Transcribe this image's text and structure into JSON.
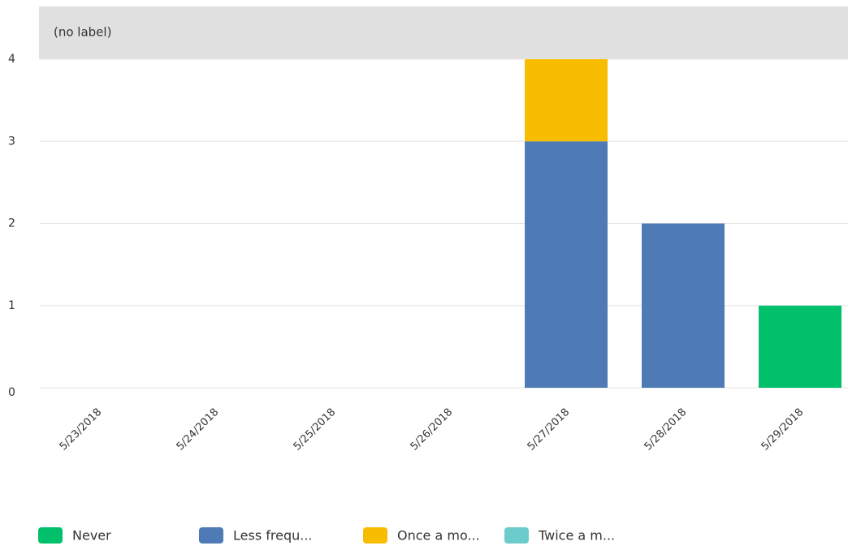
{
  "chart_data": {
    "type": "stacked_bar",
    "title": "(no label)",
    "categories": [
      "5/23/2018",
      "5/24/2018",
      "5/25/2018",
      "5/26/2018",
      "5/27/2018",
      "5/28/2018",
      "5/29/2018"
    ],
    "series": [
      {
        "name": "Never",
        "color": "#00c06b",
        "values": [
          0,
          0,
          0,
          0,
          0,
          0,
          1
        ]
      },
      {
        "name": "Less frequ...",
        "color": "#4e7ab5",
        "values": [
          0,
          0,
          0,
          0,
          3,
          2,
          0
        ]
      },
      {
        "name": "Once a mo...",
        "color": "#f8bd00",
        "values": [
          0,
          0,
          0,
          0,
          1,
          0,
          0
        ]
      },
      {
        "name": "Twice a m...",
        "color": "#6ccbcb",
        "values": [
          0,
          0,
          0,
          0,
          0,
          0,
          0
        ]
      }
    ],
    "ylim": [
      0,
      4
    ],
    "yticks": [
      0,
      1,
      2,
      3,
      4
    ],
    "grid": true
  }
}
